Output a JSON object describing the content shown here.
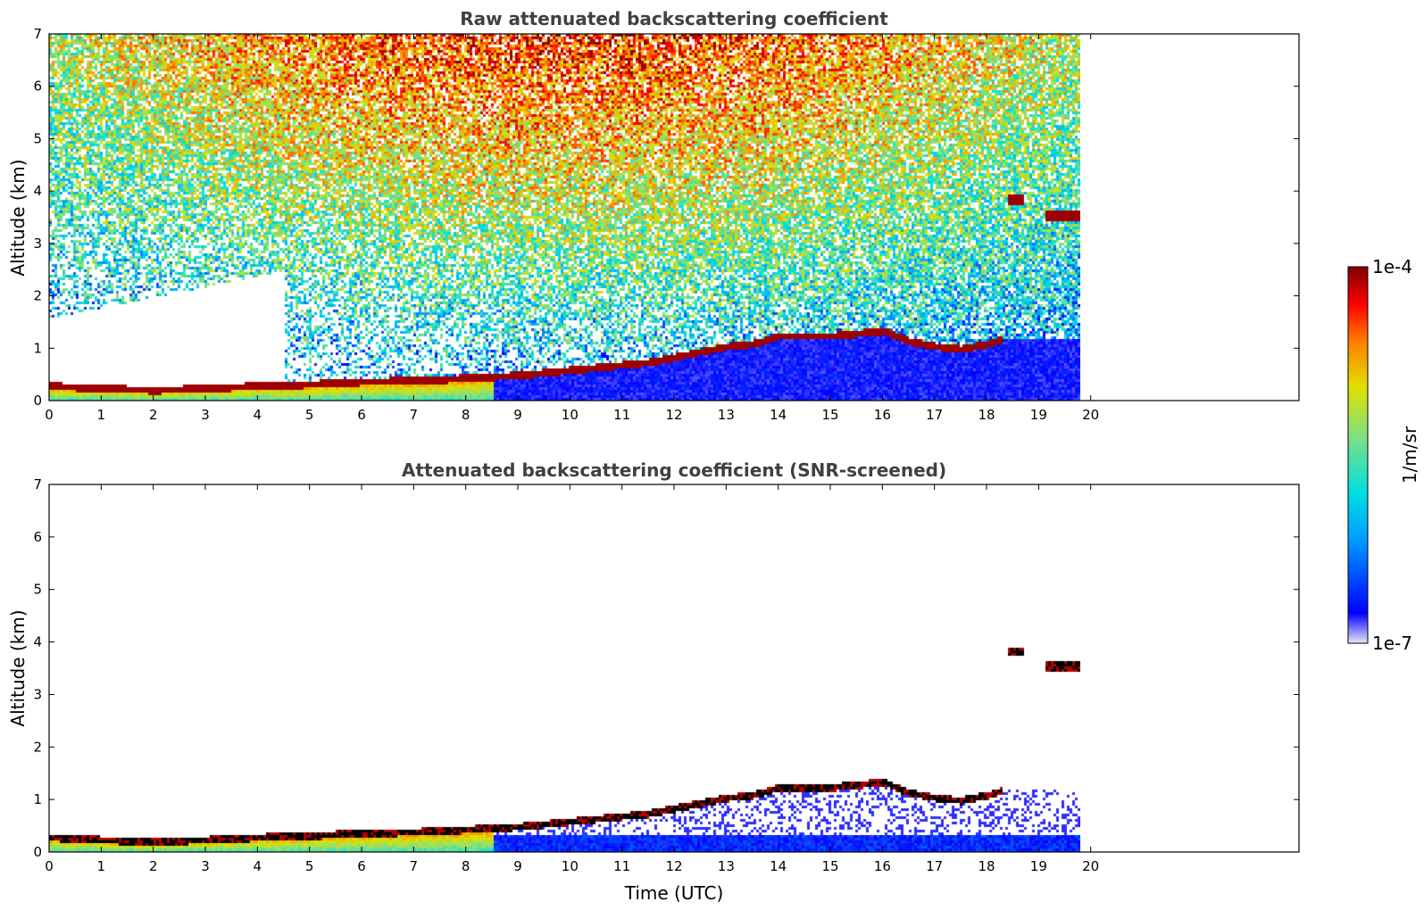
{
  "chart_data": [
    {
      "type": "heatmap",
      "title": "Raw attenuated backscattering coefficient",
      "xlabel": "",
      "ylabel": "Altitude (km)",
      "xlim": [
        0,
        24
      ],
      "ylim": [
        0,
        7
      ],
      "x_ticks": [
        0,
        1,
        2,
        3,
        4,
        5,
        6,
        7,
        8,
        9,
        10,
        11,
        12,
        13,
        14,
        15,
        16,
        17,
        18,
        19,
        20
      ],
      "y_ticks": [
        0,
        1,
        2,
        3,
        4,
        5,
        6,
        7
      ],
      "data_end_time": 19.8,
      "screened": false,
      "cloud_layer": {
        "time": [
          0,
          1,
          2,
          3,
          4,
          5,
          6,
          7,
          7.5,
          8,
          9,
          10,
          11,
          11.5,
          12,
          12.5,
          13,
          13.5,
          14,
          15,
          16,
          16.5,
          17,
          17.5,
          18,
          18.3
        ],
        "altitude_km": [
          0.3,
          0.25,
          0.22,
          0.25,
          0.3,
          0.33,
          0.38,
          0.4,
          0.42,
          0.45,
          0.5,
          0.6,
          0.7,
          0.75,
          0.85,
          0.95,
          1.05,
          1.1,
          1.25,
          1.25,
          1.35,
          1.15,
          1.05,
          1.0,
          1.1,
          1.2
        ]
      },
      "elevated_cloud": [
        {
          "time": [
            18.4,
            18.7
          ],
          "altitude_km": 3.85
        },
        {
          "time": [
            19.1,
            19.8
          ],
          "altitude_km": 3.55
        }
      ]
    },
    {
      "type": "heatmap",
      "title": "Attenuated backscattering coefficient (SNR-screened)",
      "xlabel": "Time (UTC)",
      "ylabel": "Altitude (km)",
      "xlim": [
        0,
        24
      ],
      "ylim": [
        0,
        7
      ],
      "x_ticks": [
        0,
        1,
        2,
        3,
        4,
        5,
        6,
        7,
        8,
        9,
        10,
        11,
        12,
        13,
        14,
        15,
        16,
        17,
        18,
        19,
        20
      ],
      "y_ticks": [
        0,
        1,
        2,
        3,
        4,
        5,
        6,
        7
      ],
      "data_end_time": 19.8,
      "screened": true,
      "cloud_layer": {
        "time": [
          0,
          1,
          2,
          3,
          4,
          5,
          6,
          7,
          7.5,
          8,
          9,
          10,
          11,
          11.5,
          12,
          12.5,
          13,
          13.5,
          14,
          15,
          16,
          16.5,
          17,
          17.5,
          18,
          18.3
        ],
        "altitude_km": [
          0.3,
          0.25,
          0.22,
          0.25,
          0.3,
          0.33,
          0.38,
          0.4,
          0.42,
          0.45,
          0.5,
          0.6,
          0.7,
          0.75,
          0.85,
          0.95,
          1.05,
          1.1,
          1.25,
          1.25,
          1.35,
          1.15,
          1.05,
          1.0,
          1.1,
          1.2
        ]
      },
      "elevated_cloud": [
        {
          "time": [
            18.4,
            18.7
          ],
          "altitude_km": 3.85
        },
        {
          "time": [
            19.1,
            19.8
          ],
          "altitude_km": 3.55
        }
      ]
    }
  ],
  "colorbar": {
    "label": "1/m/sr",
    "max_label": "1e-4",
    "min_label": "1e-7",
    "scale": "log",
    "range": [
      1e-07,
      0.0001
    ],
    "colormap": "jet",
    "stops": [
      "#e8e8f8",
      "#0000ff",
      "#00a0ff",
      "#00e0e0",
      "#80e080",
      "#e0e000",
      "#ff8000",
      "#ff0000",
      "#800000"
    ]
  }
}
